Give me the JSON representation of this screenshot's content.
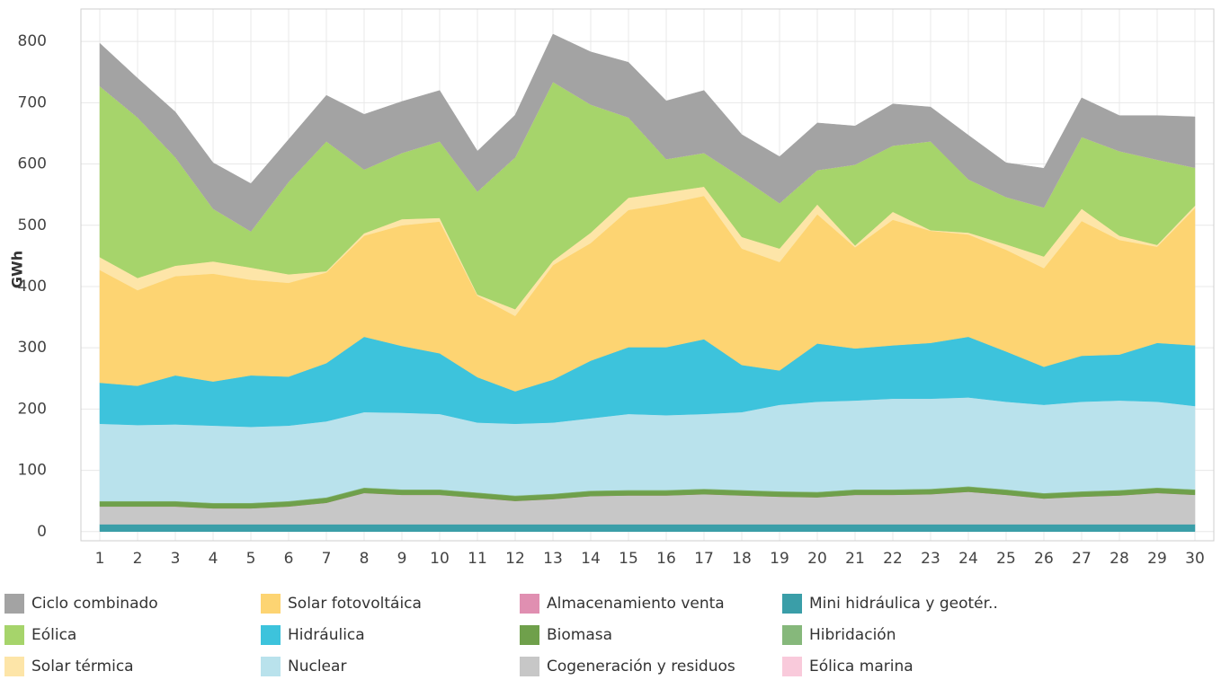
{
  "chart_data": {
    "type": "stacked_area",
    "y_label": "GWh",
    "x": [
      1,
      2,
      3,
      4,
      5,
      6,
      7,
      8,
      9,
      10,
      11,
      12,
      13,
      14,
      15,
      16,
      17,
      18,
      19,
      20,
      21,
      22,
      23,
      24,
      25,
      26,
      27,
      28,
      29,
      30
    ],
    "xlim": [
      0.5,
      30.5
    ],
    "xticks": [
      1,
      2,
      3,
      4,
      5,
      6,
      7,
      8,
      9,
      10,
      11,
      12,
      13,
      14,
      15,
      16,
      17,
      18,
      19,
      20,
      21,
      22,
      23,
      24,
      25,
      26,
      27,
      28,
      29,
      30
    ],
    "ylim": [
      -15,
      853
    ],
    "yticks": [
      0,
      100,
      200,
      300,
      400,
      500,
      600,
      700,
      800
    ],
    "grid": true,
    "legend": "bottom",
    "series": [
      {
        "name": "Ciclo combinado",
        "color": "#a3a3a3",
        "values": [
          70,
          64,
          74,
          75,
          78,
          69,
          75,
          90,
          84,
          83,
          66,
          69,
          78,
          86,
          90,
          95,
          102,
          70,
          76,
          77,
          63,
          68,
          56,
          72,
          56,
          64,
          64,
          58,
          72,
          83
        ]
      },
      {
        "name": "Eólica",
        "color": "#a6d46b",
        "values": [
          279,
          262,
          177,
          86,
          59,
          151,
          212,
          104,
          108,
          125,
          168,
          248,
          292,
          209,
          131,
          54,
          55,
          97,
          74,
          56,
          132,
          108,
          145,
          87,
          77,
          80,
          117,
          138,
          139,
          62
        ]
      },
      {
        "name": "Solar térmica",
        "color": "#fde5a8",
        "values": [
          21,
          20,
          17,
          20,
          20,
          14,
          2,
          4,
          10,
          6,
          2,
          11,
          7,
          17,
          20,
          19,
          15,
          19,
          22,
          16,
          3,
          13,
          1,
          3,
          9,
          19,
          20,
          7,
          3,
          4
        ]
      },
      {
        "name": "Solar fotovoltáica",
        "color": "#fdd472",
        "values": [
          184,
          156,
          162,
          176,
          156,
          153,
          148,
          165,
          197,
          215,
          133,
          123,
          187,
          192,
          224,
          234,
          234,
          190,
          177,
          211,
          165,
          205,
          183,
          167,
          166,
          161,
          220,
          187,
          157,
          224
        ]
      },
      {
        "name": "Hidráulica",
        "color": "#3dc3dc",
        "values": [
          67,
          64,
          80,
          72,
          84,
          80,
          95,
          123,
          109,
          99,
          74,
          53,
          70,
          94,
          109,
          111,
          122,
          77,
          56,
          95,
          85,
          87,
          91,
          99,
          82,
          62,
          75,
          75,
          96,
          99
        ]
      },
      {
        "name": "Nuclear",
        "color": "#b9e2ec",
        "values": [
          126,
          124,
          125,
          126,
          124,
          123,
          124,
          123,
          125,
          123,
          114,
          117,
          116,
          118,
          124,
          122,
          122,
          127,
          141,
          147,
          145,
          148,
          147,
          145,
          143,
          144,
          146,
          146,
          140,
          136
        ]
      },
      {
        "name": "Almacenamiento venta",
        "color": "#e08fb1",
        "values": [
          0,
          0,
          0,
          0,
          0,
          0,
          0,
          0,
          0,
          0,
          0,
          0,
          0,
          0,
          0,
          0,
          0,
          0,
          0,
          0,
          0,
          0,
          0,
          0,
          0,
          0,
          0,
          0,
          0,
          0
        ]
      },
      {
        "name": "Biomasa",
        "color": "#6fa04b",
        "values": [
          8,
          8,
          8,
          8,
          8,
          8,
          8,
          8,
          8,
          8,
          8,
          8,
          8,
          8,
          8,
          8,
          8,
          8,
          8,
          8,
          8,
          8,
          8,
          8,
          8,
          8,
          8,
          8,
          8,
          8
        ]
      },
      {
        "name": "Cogeneración y residuos",
        "color": "#c7c7c7",
        "values": [
          29,
          29,
          29,
          26,
          26,
          29,
          35,
          51,
          48,
          48,
          43,
          38,
          41,
          46,
          47,
          47,
          49,
          47,
          45,
          44,
          48,
          48,
          49,
          53,
          48,
          42,
          45,
          47,
          51,
          48
        ]
      },
      {
        "name": "Mini hidráulica y geotér..",
        "color": "#3a9ea8",
        "values": [
          12,
          12,
          12,
          12,
          12,
          12,
          12,
          12,
          12,
          12,
          12,
          12,
          12,
          12,
          12,
          12,
          12,
          12,
          12,
          12,
          12,
          12,
          12,
          12,
          12,
          12,
          12,
          12,
          12,
          12
        ]
      },
      {
        "name": "Hibridación",
        "color": "#86b87b",
        "values": [
          1,
          1,
          1,
          1,
          1,
          1,
          1,
          1,
          1,
          1,
          1,
          1,
          1,
          1,
          1,
          1,
          1,
          1,
          1,
          1,
          1,
          1,
          1,
          1,
          1,
          1,
          1,
          1,
          1,
          1
        ]
      },
      {
        "name": "Eólica marina",
        "color": "#f9cadb",
        "values": [
          0,
          0,
          0,
          0,
          0,
          0,
          0,
          0,
          0,
          0,
          0,
          0,
          0,
          0,
          0,
          0,
          0,
          0,
          0,
          0,
          0,
          0,
          0,
          0,
          0,
          0,
          0,
          0,
          0,
          0
        ]
      }
    ]
  }
}
